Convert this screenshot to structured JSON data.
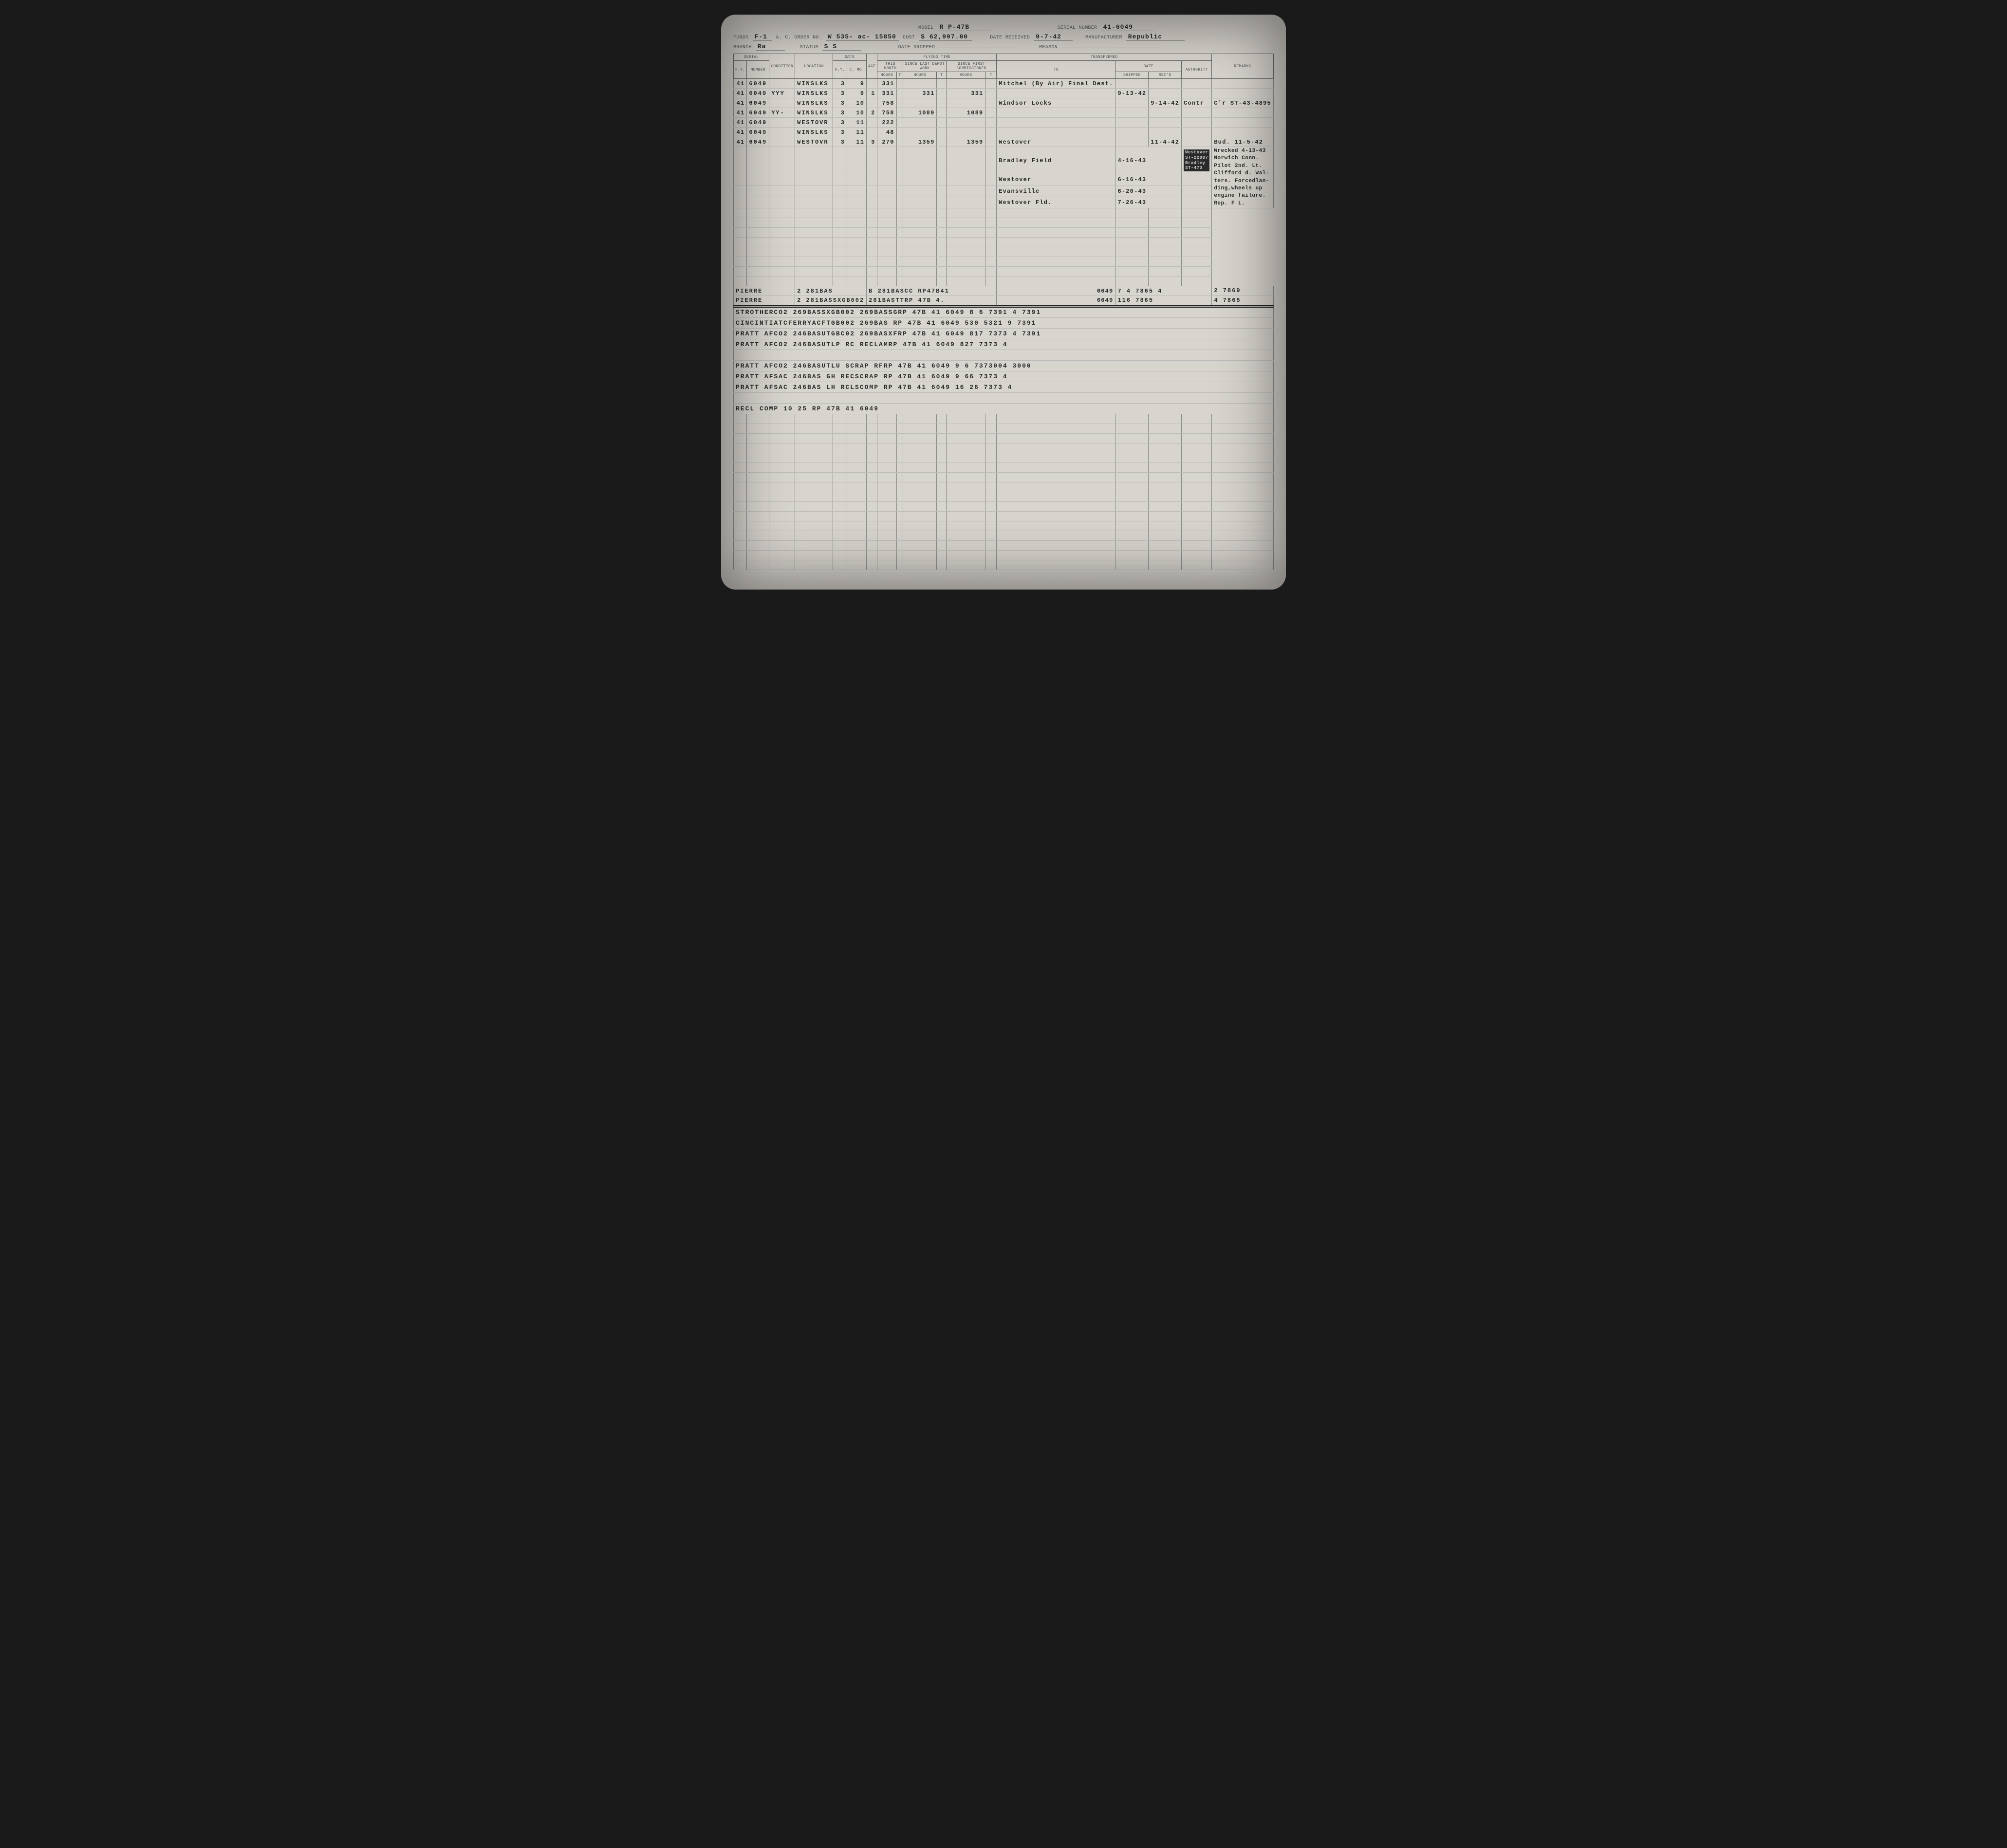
{
  "header": {
    "model_lbl": "MODEL",
    "model": "R P-47B",
    "serial_lbl": "SERIAL NUMBER",
    "serial": "41-6049",
    "funds_lbl": "FUNDS",
    "funds": "F-1",
    "order_lbl": "A. C. ORDER NO.",
    "order": "W 535- ac- 15850",
    "cost_lbl": "COST",
    "cost": "$ 62,997.00",
    "date_recv_lbl": "DATE RECEIVED",
    "date_recv": "9-7-42",
    "mfr_lbl": "MANUFACTURER",
    "mfr": "Republic",
    "branch_lbl": "BRANCH",
    "branch": "Ra",
    "status_lbl": "STATUS",
    "status": "S S",
    "dropped_lbl": "DATE DROPPED",
    "dropped": "",
    "reason_lbl": "REASON",
    "reason": ""
  },
  "columns": {
    "serial": "SERIAL",
    "fy": "F.Y.",
    "number": "NUMBER",
    "condition": "CONDITION",
    "location": "LOCATION",
    "date": "DATE",
    "dfy": "F.Y.",
    "cmo": "C. MO.",
    "age": "AGE",
    "flying": "FLYING TIME",
    "this_month": "THIS MONTH",
    "since_depot": "SINCE LAST DEPOT WORK",
    "since_comm": "SINCE FIRST COMMISSIONED",
    "hours": "HOURS",
    "t": "T",
    "transferred": "TRANSFERRED",
    "to": "TO",
    "tdate": "DATE",
    "shipped": "SHIPPED",
    "recd": "REC'D",
    "authority": "AUTHORITY",
    "remarks": "REMARKS"
  },
  "rows_top": [
    {
      "fy": "41",
      "num": "6049",
      "cond": "",
      "loc": "WINSLKS",
      "dfy": "3",
      "cmo": "9",
      "age": "",
      "tm": "331",
      "sd": "",
      "sc": "",
      "to": "Mitchel (By Air) Final Dest.",
      "ship": "",
      "recd": "",
      "auth": "",
      "rem": ""
    },
    {
      "fy": "41",
      "num": "6049",
      "cond": "YYY",
      "loc": "WINSLKS",
      "dfy": "3",
      "cmo": "9",
      "age": "1",
      "tm": "331",
      "sd": "331",
      "sc": "331",
      "to": "",
      "ship": "9-13-42",
      "recd": "",
      "auth": "",
      "rem": ""
    },
    {
      "fy": "41",
      "num": "6049",
      "cond": "",
      "loc": "WINSLKS",
      "dfy": "3",
      "cmo": "10",
      "age": "",
      "tm": "758",
      "sd": "",
      "sc": "",
      "to": "Windsor Locks",
      "ship": "",
      "recd": "9-14-42",
      "auth": "Contr",
      "rem": "C'r ST-43-4895"
    },
    {
      "fy": "41",
      "num": "6049",
      "cond": "YY-",
      "loc": "WINSLKS",
      "dfy": "3",
      "cmo": "10",
      "age": "2",
      "tm": "758",
      "sd": "1089",
      "sc": "1089",
      "to": "",
      "ship": "",
      "recd": "",
      "auth": "",
      "rem": ""
    },
    {
      "fy": "41",
      "num": "6049",
      "cond": "",
      "loc": "WESTOVR",
      "dfy": "3",
      "cmo": "11",
      "age": "",
      "tm": "222",
      "sd": "",
      "sc": "",
      "to": "",
      "ship": "",
      "recd": "",
      "auth": "",
      "rem": ""
    },
    {
      "fy": "41",
      "num": "6049",
      "cond": "",
      "loc": "WINSLKS",
      "dfy": "3",
      "cmo": "11",
      "age": "",
      "tm": "48",
      "sd": "",
      "sc": "",
      "to": "",
      "ship": "",
      "recd": "",
      "auth": "",
      "rem": ""
    },
    {
      "fy": "41",
      "num": "6049",
      "cond": "",
      "loc": "WESTOVR",
      "dfy": "3",
      "cmo": "11",
      "age": "3",
      "tm": "270",
      "sd": "1359",
      "sc": "1359",
      "to": "Westover",
      "ship": "",
      "recd": "11-4-42",
      "auth": "",
      "rem": "Bud. 11-5-42"
    }
  ],
  "transfers_extra": [
    {
      "to": "Bradley Field",
      "date": "4-16-43",
      "stamp": "Westover\nST-22007\nBradley\nST-473"
    },
    {
      "to": "Westover",
      "date": "6-16-43",
      "stamp": ""
    },
    {
      "to": "Evansville",
      "date": "6-20-43",
      "stamp": ""
    },
    {
      "to": "Westover Fld.",
      "date": "7-26-43",
      "stamp": ""
    }
  ],
  "remarks_block": [
    "Wrecked 4-13-43",
    "Norwich Conn.",
    "Pilot 2nd. Lt.",
    "Clifford d. Wal-",
    "ters. Forcedlan-",
    "ding,wheels up",
    "engine failure.",
    "Rep.       F L."
  ],
  "rows_pierre": [
    {
      "a": "PIERRE",
      "b": "2 281BAS",
      "c": "B 281BASCC RP47B41",
      "d": "6049",
      "e": "7 4 7865 4",
      "f": "2 7869"
    },
    {
      "a": "PIERRE",
      "b": "2 281BASSXGB002",
      "c": "281BASTTRP 47B 4.",
      "d": "6049",
      "e": "116 7865",
      "f": "4 7865"
    }
  ],
  "rows_bottom": [
    {
      "line": "STROTHERCO2 269BASSXGB002 269BASSGRP 47B 41   6049  8 6 7391   4   7391"
    },
    {
      "line": "CINCINTIATCFERRYACFTGB002 269BAS  RP 47B 41   6049  530 5321   9   7391"
    },
    {
      "line": "PRATT AFCO2 246BASUTGBC02 269BASXFRP 47B 41   6049  817 7373   4   7391"
    },
    {
      "line": "PRATT AFCO2 246BASUTLP   RC RECLAMRP 47B 41   6049  827 7373   4"
    },
    {
      "line": ""
    },
    {
      "line": "PRATT AFCO2 246BASUTLU   SCRAP RFRP 47B 41   6049  9 6 7373004   3000"
    },
    {
      "line": "PRATT AFSAC 246BAS  GH   RECSCRAP RP 47B   41 6049 9 66 7373  4"
    },
    {
      "line": "PRATT AFSAC 246BAS  LH   RCLSCOMP RP 47B   41 6049 16 26 7373  4"
    },
    {
      "line": ""
    },
    {
      "line": "RECL COMP            10 25    RP 47B      41  6049"
    }
  ]
}
